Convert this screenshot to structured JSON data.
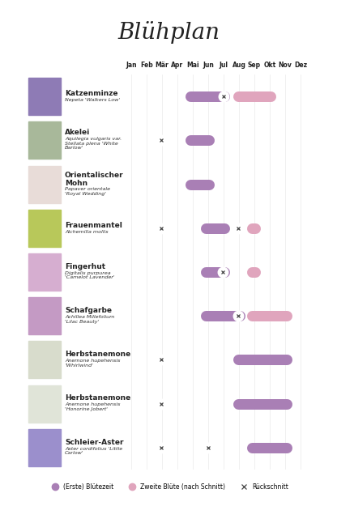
{
  "chart_data": {
    "type": "gantt",
    "title": "Blühplan",
    "categories": [
      "Jan",
      "Feb",
      "Mär",
      "Apr",
      "Mai",
      "Jun",
      "Jul",
      "Aug",
      "Sep",
      "Okt",
      "Nov",
      "Dez"
    ],
    "xlim": [
      0,
      12
    ],
    "legend": "lower center",
    "series": [
      {
        "name": "(Erste) Blütezeit",
        "color": "#a97fb5",
        "marker": "o"
      },
      {
        "name": "Zweite Blüte (nach Schnitt)",
        "color": "#e0a5bd",
        "marker": "o"
      },
      {
        "name": "Rückschnitt",
        "color": "#444444",
        "marker": "x"
      }
    ],
    "rows": [
      {
        "name": "Katzenminze",
        "latin": "Nepeta 'Walkers Low'",
        "first": [
          4.0,
          6.9
        ],
        "second": [
          7.1,
          9.9
        ],
        "cuts": [
          6.5
        ]
      },
      {
        "name": "Akelei",
        "latin": "Aquilegia vulgaris var.\nStellata plena 'White\nBarlow'",
        "first": [
          4.0,
          5.9
        ],
        "second": null,
        "cuts": [
          2.45
        ]
      },
      {
        "name": "Orientalischer\nMohn",
        "latin": "Papaver orientale\n'Royal Wedding'",
        "first": [
          4.0,
          5.9
        ],
        "second": null,
        "cuts": []
      },
      {
        "name": "Frauenmantel",
        "latin": "Alchemilla mollis",
        "first": [
          5.0,
          6.9
        ],
        "second": [
          8.0,
          8.9
        ],
        "cuts": [
          2.45,
          7.45
        ]
      },
      {
        "name": "Fingerhut",
        "latin": "Digitalis purpurea\n'Camelot Lavender'",
        "first": [
          5.0,
          6.9
        ],
        "second": [
          8.0,
          8.9
        ],
        "cuts": [
          6.45
        ]
      },
      {
        "name": "Schafgarbe",
        "latin": "Achillea Millefolium\n'Lilac Beauty'",
        "first": [
          5.0,
          7.9
        ],
        "second": [
          8.0,
          10.95
        ],
        "cuts": [
          7.45
        ]
      },
      {
        "name": "Herbstanemone",
        "latin": "Anemone hupehensis\n'Whirlwind'",
        "first": [
          7.1,
          10.95
        ],
        "second": null,
        "cuts": [
          2.45
        ]
      },
      {
        "name": "Herbstanemone",
        "latin": "Anemone hupehensis\n'Honorine Jobert'",
        "first": [
          7.1,
          10.95
        ],
        "second": null,
        "cuts": [
          2.45
        ]
      },
      {
        "name": "Schleier-Aster",
        "latin": "Aster cordifolius 'Little\nCarlow'",
        "first": [
          8.0,
          10.95
        ],
        "second": null,
        "cuts": [
          2.45,
          5.5
        ]
      }
    ]
  }
}
